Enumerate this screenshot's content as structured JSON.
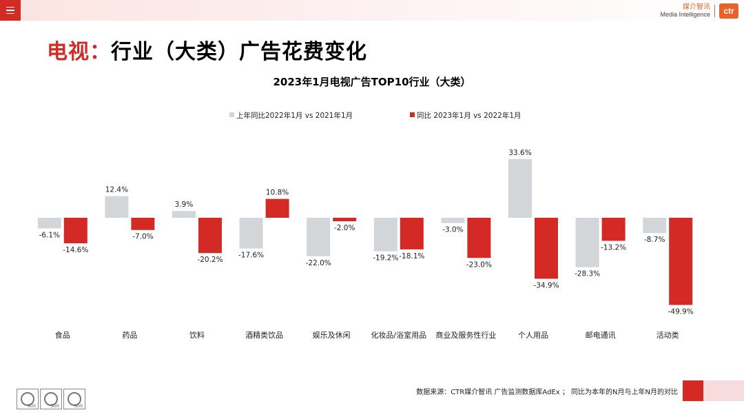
{
  "header": {
    "logo_cn": "媒介智讯",
    "logo_en": "Media Intelligence",
    "logo_mark": "ctr"
  },
  "page_title": {
    "accent": "电视：",
    "rest": "行业（大类）广告花费变化"
  },
  "chart_data": {
    "type": "bar",
    "title": "2023年1月电视广告TOP10行业（大类）",
    "categories": [
      "食品",
      "药品",
      "饮料",
      "酒精类饮品",
      "娱乐及休闲",
      "化妆品/浴室用品",
      "商业及服务性行业",
      "个人用品",
      "邮电通讯",
      "活动类"
    ],
    "series": [
      {
        "name": "上年同比2022年1月  vs  2021年1月",
        "color": "#d2d6d9",
        "values": [
          -6.1,
          12.4,
          3.9,
          -17.6,
          -22.0,
          -19.2,
          -3.0,
          33.6,
          -28.3,
          -8.7
        ],
        "labels": [
          "-6.1%",
          "12.4%",
          "3.9%",
          "-17.6%",
          "-22.0%",
          "-19.2%",
          "-3.0%",
          "33.6%",
          "-28.3%",
          "-8.7%"
        ]
      },
      {
        "name": "同比 2023年1月  vs  2022年1月",
        "color": "#d42a26",
        "values": [
          -14.6,
          -7.0,
          -20.2,
          10.8,
          -2.0,
          -18.1,
          -23.0,
          -34.9,
          -13.2,
          -49.9
        ],
        "labels": [
          "-14.6%",
          "-7.0%",
          "-20.2%",
          "10.8%",
          "-2.0%",
          "-18.1%",
          "-23.0%",
          "-34.9%",
          "-13.2%",
          "-49.9%"
        ]
      }
    ],
    "unit": "%",
    "ylim": [
      -50,
      34
    ],
    "grid": false,
    "legend_position": "top-center"
  },
  "footer": {
    "source": "数据来源：CTR媒介智讯 广告监测数据库AdEx ；  同比为本年的N月与上年N月的对比",
    "badge_label": "SGS"
  }
}
